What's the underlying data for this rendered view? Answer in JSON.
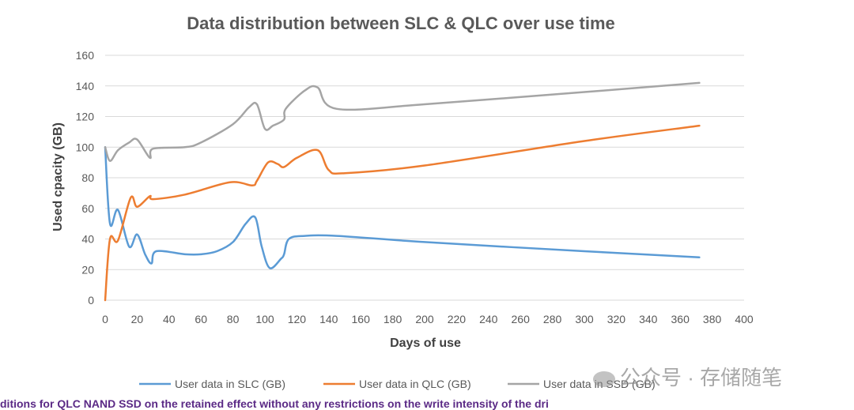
{
  "chart_data": {
    "type": "line",
    "title": "Data distribution between SLC & QLC over use time",
    "xlabel": "Days of use",
    "ylabel": "Used cpacity (GB)",
    "xlim": [
      0,
      400
    ],
    "ylim": [
      0,
      160
    ],
    "xticks": [
      0,
      20,
      40,
      60,
      80,
      100,
      120,
      140,
      160,
      180,
      200,
      220,
      240,
      260,
      280,
      300,
      320,
      340,
      360,
      380,
      400
    ],
    "yticks": [
      0,
      20,
      40,
      60,
      80,
      100,
      120,
      140,
      160
    ],
    "grid": true,
    "legend_position": "bottom",
    "series": [
      {
        "name": "User data in SLC (GB)",
        "color": "#5b9bd5",
        "points": [
          [
            0,
            100
          ],
          [
            3,
            50
          ],
          [
            8,
            59
          ],
          [
            15,
            35
          ],
          [
            20,
            43
          ],
          [
            25,
            30
          ],
          [
            29,
            24
          ],
          [
            32,
            32
          ],
          [
            50,
            30
          ],
          [
            60,
            30
          ],
          [
            70,
            32
          ],
          [
            80,
            38
          ],
          [
            88,
            50
          ],
          [
            94,
            54
          ],
          [
            98,
            35
          ],
          [
            103,
            21
          ],
          [
            110,
            27
          ],
          [
            112,
            30
          ],
          [
            115,
            40
          ],
          [
            125,
            42
          ],
          [
            145,
            42
          ],
          [
            200,
            38
          ],
          [
            300,
            32
          ],
          [
            372,
            28
          ]
        ]
      },
      {
        "name": "User data in QLC (GB)",
        "color": "#ed7d31",
        "points": [
          [
            0,
            0
          ],
          [
            3,
            40
          ],
          [
            8,
            39
          ],
          [
            16,
            67
          ],
          [
            20,
            61
          ],
          [
            28,
            68
          ],
          [
            30,
            66
          ],
          [
            50,
            69
          ],
          [
            78,
            77
          ],
          [
            92,
            75
          ],
          [
            95,
            78
          ],
          [
            102,
            90
          ],
          [
            108,
            89
          ],
          [
            112,
            87
          ],
          [
            120,
            93
          ],
          [
            133,
            98
          ],
          [
            140,
            85
          ],
          [
            150,
            83
          ],
          [
            200,
            88
          ],
          [
            300,
            104
          ],
          [
            372,
            114
          ]
        ]
      },
      {
        "name": "User data in SSD (GB)",
        "color": "#a5a5a5",
        "points": [
          [
            0,
            100
          ],
          [
            3,
            91
          ],
          [
            8,
            98
          ],
          [
            15,
            103
          ],
          [
            20,
            105
          ],
          [
            28,
            93
          ],
          [
            30,
            99
          ],
          [
            50,
            100
          ],
          [
            60,
            103
          ],
          [
            80,
            115
          ],
          [
            90,
            126
          ],
          [
            95,
            128
          ],
          [
            100,
            112
          ],
          [
            105,
            114
          ],
          [
            112,
            118
          ],
          [
            113,
            125
          ],
          [
            125,
            137
          ],
          [
            133,
            139
          ],
          [
            145,
            125
          ],
          [
            200,
            128
          ],
          [
            300,
            136
          ],
          [
            372,
            142
          ]
        ]
      }
    ]
  },
  "watermark": "公众号 · 存储随笔",
  "caption": "ditions for QLC NAND SSD on the retained effect without any restrictions on the write intensity of the dri"
}
